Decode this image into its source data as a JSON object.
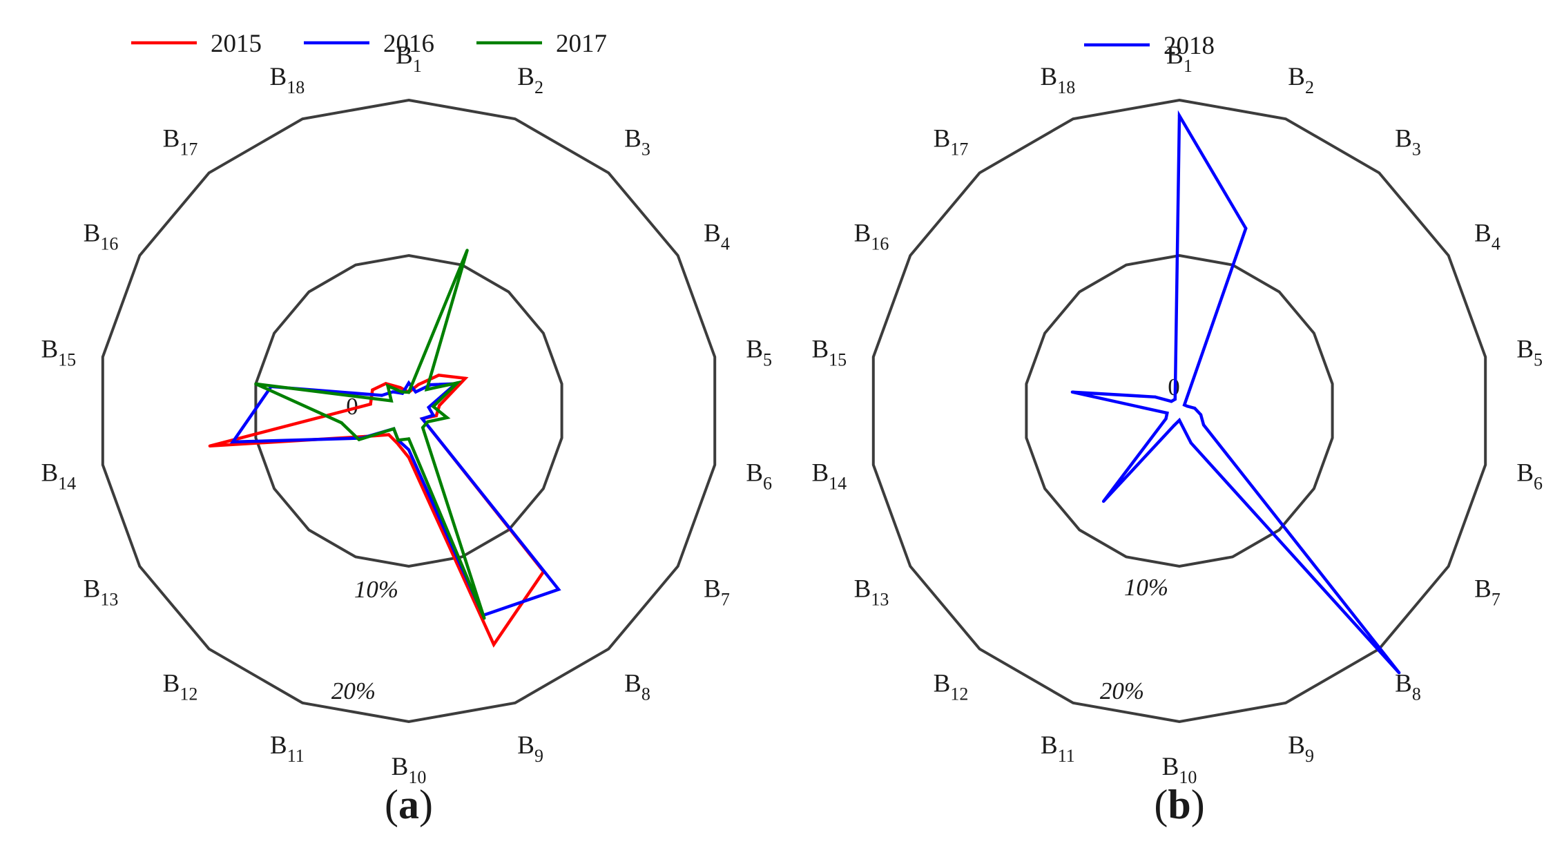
{
  "chart_data": [
    {
      "type": "radar",
      "panel_label": "(a)",
      "categories": [
        "B1",
        "B2",
        "B3",
        "B4",
        "B5",
        "B6",
        "B7",
        "B8",
        "B9",
        "B10",
        "B11",
        "B12",
        "B13",
        "B14",
        "B15",
        "B16",
        "B17",
        "B18"
      ],
      "axis_labels": {
        "center": "0",
        "inner": "10%",
        "outer": "20%"
      },
      "r_range": [
        0,
        20
      ],
      "ring_values": [
        10,
        20
      ],
      "legend_position": "top",
      "series": [
        {
          "name": "2015",
          "color": "#ff0000",
          "values": [
            1.2,
            1.8,
            3.0,
            4.2,
            2.0,
            1.8,
            1.0,
            13.5,
            16.0,
            3.0,
            2.2,
            2.0,
            3.3,
            13.0,
            2.5,
            2.7,
            2.3,
            1.6
          ]
        },
        {
          "name": "2016",
          "color": "#0000ff",
          "values": [
            1.8,
            1.3,
            2.2,
            3.5,
            1.3,
            1.6,
            1.0,
            15.0,
            14.0,
            2.5,
            2.0,
            1.5,
            3.5,
            11.5,
            9.0,
            2.0,
            1.6,
            1.2
          ]
        },
        {
          "name": "2017",
          "color": "#008000",
          "values": [
            1.2,
            11.0,
            1.8,
            3.6,
            1.6,
            2.5,
            1.4,
            1.4,
            14.2,
            1.8,
            2.0,
            1.5,
            3.7,
            4.4,
            10.0,
            1.3,
            2.1,
            1.3
          ]
        }
      ]
    },
    {
      "type": "radar",
      "panel_label": "(b)",
      "categories": [
        "B1",
        "B2",
        "B3",
        "B4",
        "B5",
        "B6",
        "B7",
        "B8",
        "B9",
        "B10",
        "B11",
        "B12",
        "B13",
        "B14",
        "B15",
        "B16",
        "B17",
        "B18"
      ],
      "axis_labels": {
        "center": "0",
        "inner": "10%",
        "outer": "20%"
      },
      "r_range": [
        0,
        20
      ],
      "ring_values": [
        10,
        20
      ],
      "legend_position": "top",
      "series": [
        {
          "name": "2018",
          "color": "#0000ff",
          "values": [
            19.0,
            12.5,
            0.5,
            0.6,
            1.0,
            1.4,
            1.8,
            22.0,
            2.2,
            0.6,
            1.0,
            7.6,
            1.0,
            0.8,
            7.0,
            1.8,
            0.8,
            0.8
          ]
        }
      ]
    }
  ]
}
